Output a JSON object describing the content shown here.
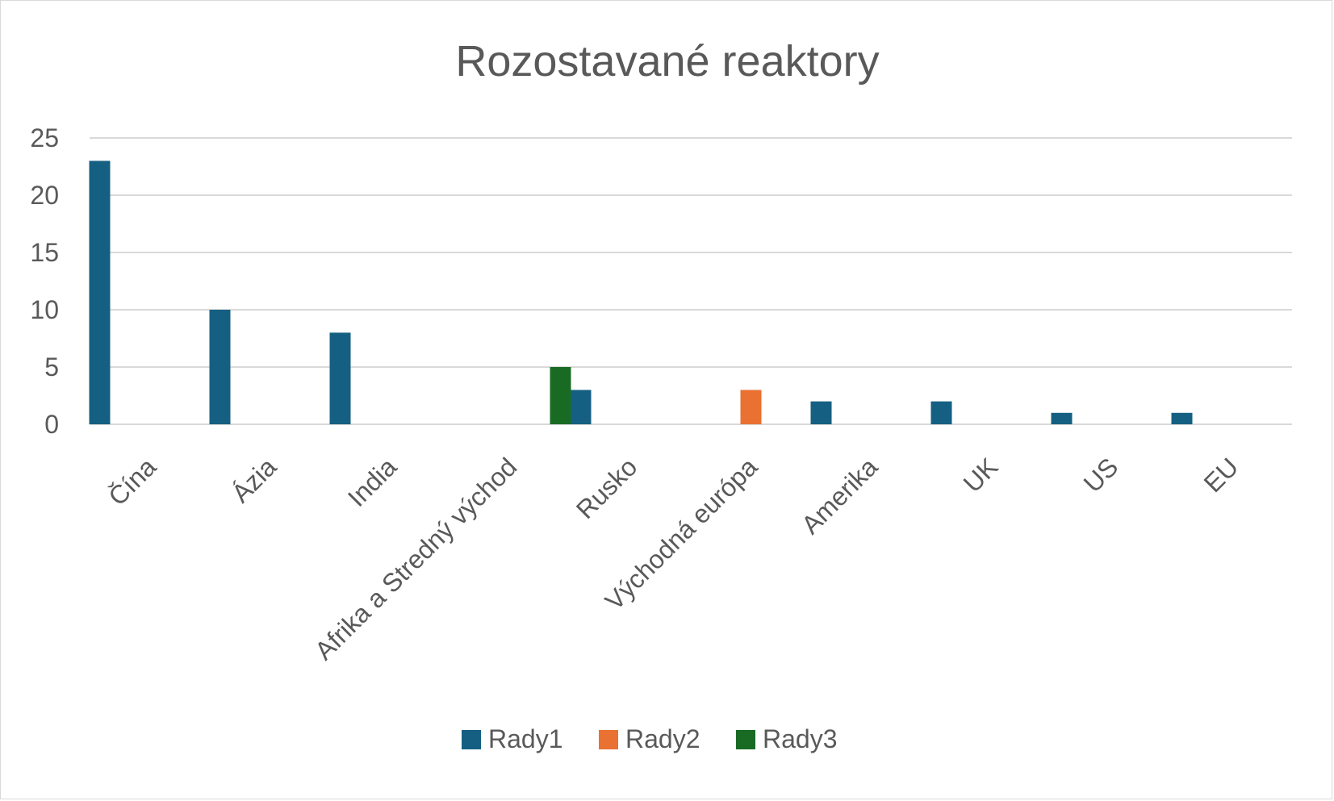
{
  "chart_data": {
    "type": "bar",
    "title": "Rozostavané reaktory",
    "xlabel": "",
    "ylabel": "",
    "ylim": [
      0,
      25
    ],
    "yticks": [
      0,
      5,
      10,
      15,
      20,
      25
    ],
    "grid": true,
    "legend_position": "bottom",
    "categories": [
      "Čína",
      "Ázia",
      "India",
      "Afrika a Stredný východ",
      "Rusko",
      "Východná európa",
      "Amerika",
      "UK",
      "US",
      "EU"
    ],
    "series": [
      {
        "name": "Rady1",
        "color": "#156082",
        "values": [
          23,
          10,
          8,
          null,
          3,
          null,
          2,
          2,
          1,
          1
        ]
      },
      {
        "name": "Rady2",
        "color": "#E97132",
        "values": [
          null,
          null,
          null,
          null,
          null,
          3,
          null,
          null,
          null,
          null
        ]
      },
      {
        "name": "Rady3",
        "color": "#196B24",
        "values": [
          null,
          null,
          null,
          5,
          null,
          null,
          null,
          null,
          null,
          null
        ]
      }
    ]
  }
}
